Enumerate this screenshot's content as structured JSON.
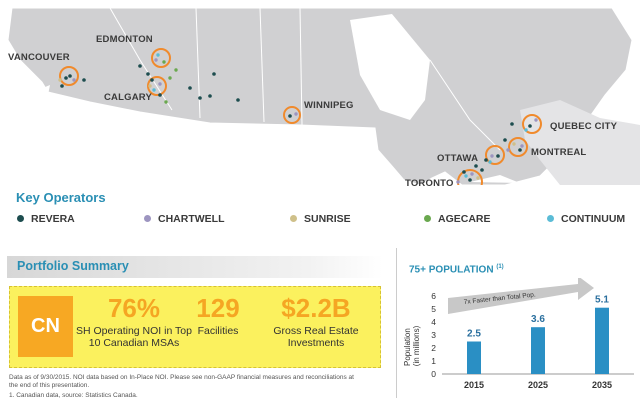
{
  "map": {
    "cities": [
      "VANCOUVER",
      "EDMONTON",
      "CALGARY",
      "WINNIPEG",
      "QUEBEC CITY",
      "OTTAWA",
      "MONTREAL",
      "TORONTO"
    ]
  },
  "key_operators": {
    "title": "Key Operators",
    "items": [
      {
        "label": "REVERA",
        "color": "#1d4d4f"
      },
      {
        "label": "CHARTWELL",
        "color": "#9d95c0"
      },
      {
        "label": "SUNRISE",
        "color": "#cfc08a"
      },
      {
        "label": "AGECARE",
        "color": "#6aa84f"
      },
      {
        "label": "CONTINUUM",
        "color": "#5bbcd6"
      }
    ]
  },
  "portfolio": {
    "title": "Portfolio Summary",
    "badge": "CN",
    "stats": [
      {
        "value": "76%",
        "label": "SH Operating NOI in Top 10 Canadian MSAs"
      },
      {
        "value": "129",
        "label": "Facilities"
      },
      {
        "value": "$2.2B",
        "label": "Gross Real Estate Investments"
      }
    ]
  },
  "footnotes": {
    "line1": "Data as of 9/30/2015. NOI data based on In-Place NOI. Please see non-GAAP financial measures and reconciliations at",
    "line2": "the end of this presentation.",
    "line3": "1.    Canadian data, source: Statistics Canada."
  },
  "population": {
    "title": "75+ POPULATION",
    "title_note": "(1)",
    "arrow_label": "7x Faster than Total Pop."
  },
  "chart_data": {
    "type": "bar",
    "categories": [
      "2015",
      "2025",
      "2035"
    ],
    "values": [
      2.5,
      3.6,
      5.1
    ],
    "ylabel": "Population (in millions)",
    "ylim": [
      0,
      6
    ],
    "yticks": [
      0,
      1,
      2,
      3,
      4,
      5,
      6
    ],
    "bar_color": "#2a8fc4",
    "grid": false
  }
}
